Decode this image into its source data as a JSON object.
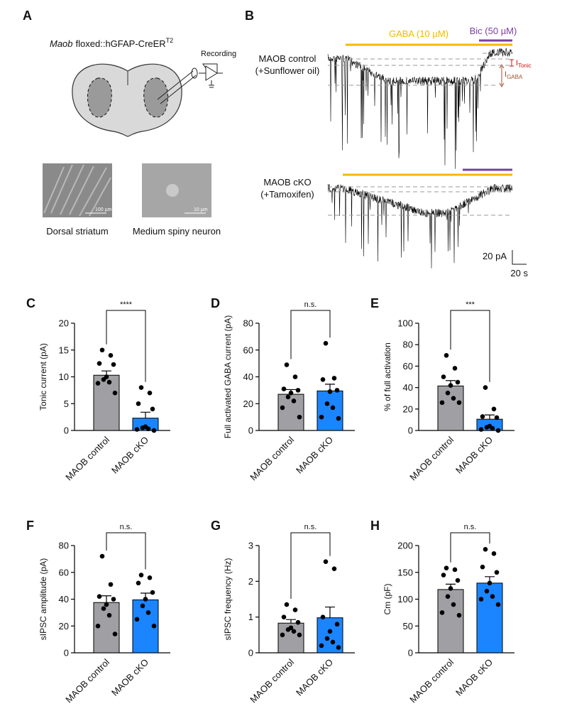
{
  "panel_a": {
    "letter": "A",
    "title_italic": "Maob",
    "title_rest": "floxed::hGFAP-CreER",
    "title_sup": "T2",
    "recording": "Recording",
    "scale_1": "100 µm",
    "scale_2": "10 µm",
    "caption_1": "Dorsal striatum",
    "caption_2": "Medium spiny neuron"
  },
  "panel_b": {
    "letter": "B",
    "gaba": "GABA (10 µM)",
    "bic": "Bic (50 µM)",
    "trace_1": [
      "MAOB control",
      "(+Sunflower oil)"
    ],
    "trace_2": [
      "MAOB cKO",
      "(+Tamoxifen)"
    ],
    "i_tonic": {
      "main": "I",
      "sub": "Tonic"
    },
    "i_gaba": {
      "main": "I",
      "sub": "GABA"
    },
    "scale_y": "20 pA",
    "scale_x": "20 s",
    "gaba_color": "#f5b800",
    "bic_color": "#7b3fa0"
  },
  "chart_data": [
    {
      "type": "bar",
      "panel": "C",
      "ylabel": "Tonic current (pA)",
      "categories": [
        "MAOB control",
        "MAOB cKO"
      ],
      "values": [
        10.3,
        2.3
      ],
      "errors": [
        0.8,
        1.1
      ],
      "colors": [
        "#a0a0a4",
        "#1a85ff"
      ],
      "points": [
        [
          15,
          14,
          12.5,
          12.3,
          10,
          9.5,
          9,
          8.8,
          7
        ],
        [
          8,
          7,
          5,
          4,
          0.7,
          0.5,
          0.3,
          0.2,
          0
        ]
      ],
      "significance": "****",
      "ylim": [
        0,
        20
      ],
      "yticks": [
        0,
        5,
        10,
        15,
        20
      ]
    },
    {
      "type": "bar",
      "panel": "D",
      "ylabel": "Full activated GABA current (pA)",
      "categories": [
        "MAOB control",
        "MAOB cKO"
      ],
      "values": [
        27,
        29.5
      ],
      "errors": [
        3.5,
        5
      ],
      "colors": [
        "#a0a0a4",
        "#1a85ff"
      ],
      "points": [
        [
          49,
          40,
          31,
          30,
          28,
          25,
          22,
          17,
          10
        ],
        [
          65,
          39,
          38,
          30,
          29,
          20,
          17,
          10,
          9
        ]
      ],
      "significance": "n.s.",
      "ylim": [
        0,
        80
      ],
      "yticks": [
        0,
        20,
        40,
        60,
        80
      ]
    },
    {
      "type": "bar",
      "panel": "E",
      "ylabel": "% of full activation",
      "categories": [
        "MAOB control",
        "MAOB cKO"
      ],
      "values": [
        41.5,
        10.5
      ],
      "errors": [
        5,
        4
      ],
      "colors": [
        "#a0a0a4",
        "#1a85ff"
      ],
      "points": [
        [
          70,
          58,
          50,
          45,
          42,
          35,
          30,
          26,
          26
        ],
        [
          40,
          20,
          13,
          12,
          4,
          3,
          2,
          1,
          0
        ]
      ],
      "significance": "***",
      "ylim": [
        0,
        100
      ],
      "yticks": [
        0,
        20,
        40,
        60,
        80,
        100
      ]
    },
    {
      "type": "bar",
      "panel": "F",
      "ylabel": "sIPSC amplitude (pA)",
      "categories": [
        "MAOB control",
        "MAOB cKO"
      ],
      "values": [
        37.5,
        39.5
      ],
      "errors": [
        5,
        5
      ],
      "colors": [
        "#a0a0a4",
        "#1a85ff"
      ],
      "points": [
        [
          72,
          51,
          42,
          40,
          36,
          33,
          28,
          20,
          14
        ],
        [
          58,
          56,
          52,
          45,
          40,
          35,
          30,
          25,
          20
        ]
      ],
      "significance": "n.s.",
      "ylim": [
        0,
        80
      ],
      "yticks": [
        0,
        20,
        40,
        60,
        80
      ]
    },
    {
      "type": "bar",
      "panel": "G",
      "ylabel": "sIPSC frequency (Hz)",
      "categories": [
        "MAOB control",
        "MAOB cKO"
      ],
      "values": [
        0.83,
        0.98
      ],
      "errors": [
        0.1,
        0.3
      ],
      "colors": [
        "#a0a0a4",
        "#1a85ff"
      ],
      "points": [
        [
          1.35,
          1.2,
          1.0,
          0.85,
          0.7,
          0.65,
          0.6,
          0.5,
          0.5
        ],
        [
          2.55,
          2.35,
          1.0,
          0.8,
          0.6,
          0.4,
          0.3,
          0.2,
          0.15
        ]
      ],
      "significance": "n.s.",
      "ylim": [
        0,
        3
      ],
      "yticks": [
        0,
        1,
        2,
        3
      ]
    },
    {
      "type": "bar",
      "panel": "H",
      "ylabel": "Cm (pF)",
      "categories": [
        "MAOB control",
        "MAOB cKO"
      ],
      "values": [
        118,
        130
      ],
      "errors": [
        10,
        12
      ],
      "colors": [
        "#a0a0a4",
        "#1a85ff"
      ],
      "points": [
        [
          158,
          155,
          145,
          135,
          120,
          105,
          90,
          75,
          70
        ],
        [
          193,
          185,
          160,
          150,
          130,
          115,
          105,
          100,
          90
        ]
      ],
      "significance": "n.s.",
      "ylim": [
        0,
        200
      ],
      "yticks": [
        0,
        50,
        100,
        150,
        200
      ]
    }
  ]
}
